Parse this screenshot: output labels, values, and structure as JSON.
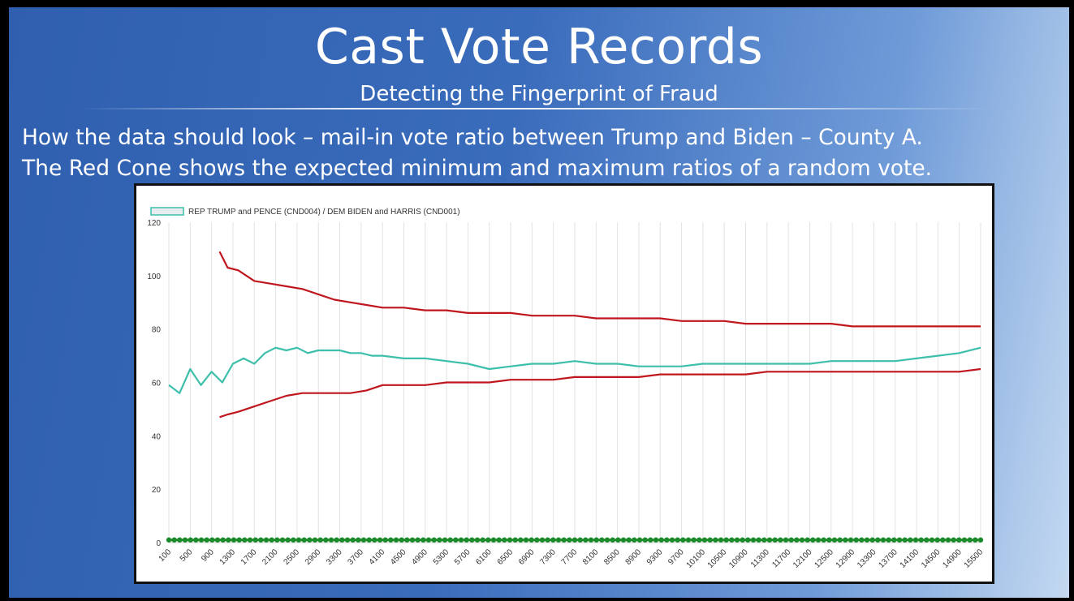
{
  "slide": {
    "title": "Cast Vote Records",
    "subtitle": "Detecting the Fingerprint of Fraud",
    "description_line_1": "How the data should look – mail-in vote ratio between Trump and Biden – County A.",
    "description_line_2": "The Red Cone shows the expected minimum and maximum ratios of a random vote."
  },
  "chart_data": {
    "type": "line",
    "legend": "REP TRUMP and PENCE (CND004) / DEM BIDEN and HARRIS (CND001)",
    "ylim": [
      0,
      120
    ],
    "yticks": [
      0,
      20,
      40,
      60,
      80,
      100,
      120
    ],
    "grid": "vertical",
    "xticks": [
      100,
      500,
      900,
      1300,
      1700,
      2100,
      2500,
      2900,
      3300,
      3700,
      4100,
      4500,
      4900,
      5300,
      5700,
      6100,
      6500,
      6900,
      7300,
      7700,
      8100,
      8500,
      8900,
      9300,
      9700,
      10100,
      10500,
      10900,
      11300,
      11700,
      12100,
      12500,
      12900,
      13300,
      13700,
      14100,
      14500,
      14900,
      15500
    ],
    "series": [
      {
        "name": "REP TRUMP and PENCE (CND004) / DEM BIDEN and HARRIS (CND001)",
        "color": "#3dbfab",
        "x": [
          100,
          300,
          500,
          700,
          900,
          1100,
          1300,
          1500,
          1700,
          1900,
          2100,
          2300,
          2500,
          2700,
          2900,
          3100,
          3300,
          3500,
          3700,
          3900,
          4100,
          4500,
          4900,
          5300,
          5700,
          6100,
          6500,
          6900,
          7300,
          7700,
          8100,
          8500,
          8900,
          9300,
          9700,
          10100,
          10500,
          10900,
          11300,
          11700,
          12100,
          12500,
          12900,
          13300,
          13700,
          14100,
          14500,
          14900,
          15500
        ],
        "y": [
          59,
          56,
          65,
          59,
          64,
          60,
          67,
          69,
          67,
          71,
          73,
          72,
          73,
          71,
          72,
          72,
          72,
          71,
          71,
          70,
          70,
          69,
          69,
          68,
          67,
          65,
          66,
          67,
          67,
          68,
          67,
          67,
          66,
          66,
          66,
          67,
          67,
          67,
          67,
          67,
          67,
          68,
          68,
          68,
          68,
          69,
          70,
          71,
          73
        ]
      },
      {
        "name": "",
        "color": "#c0161e",
        "x": [
          1050,
          1200,
          1400,
          1700,
          2000,
          2300,
          2600,
          2900,
          3200,
          3500,
          3800,
          4100,
          4500,
          4900,
          5300,
          5700,
          6100,
          6500,
          6900,
          7300,
          7700,
          8100,
          8500,
          8900,
          9300,
          9700,
          10100,
          10500,
          10900,
          11300,
          11700,
          12100,
          12500,
          12900,
          13300,
          13700,
          14100,
          14500,
          14900,
          15500
        ],
        "y": [
          109,
          103,
          102,
          98,
          97,
          96,
          95,
          93,
          91,
          90,
          89,
          88,
          88,
          87,
          87,
          86,
          86,
          86,
          85,
          85,
          85,
          84,
          84,
          84,
          84,
          83,
          83,
          83,
          82,
          82,
          82,
          82,
          82,
          81,
          81,
          81,
          81,
          81,
          81,
          81
        ]
      },
      {
        "name": "",
        "color": "#c0161e",
        "x": [
          1050,
          1200,
          1400,
          1700,
          2000,
          2300,
          2600,
          2900,
          3200,
          3500,
          3800,
          4100,
          4500,
          4900,
          5300,
          5700,
          6100,
          6500,
          6900,
          7300,
          7700,
          8100,
          8500,
          8900,
          9300,
          9700,
          10100,
          10500,
          10900,
          11300,
          11700,
          12100,
          12500,
          12900,
          13300,
          13700,
          14100,
          14500,
          14900,
          15500
        ],
        "y": [
          47,
          48,
          49,
          51,
          53,
          55,
          56,
          56,
          56,
          56,
          57,
          59,
          59,
          59,
          60,
          60,
          60,
          61,
          61,
          61,
          62,
          62,
          62,
          62,
          63,
          63,
          63,
          63,
          63,
          64,
          64,
          64,
          64,
          64,
          64,
          64,
          64,
          64,
          64,
          65
        ]
      },
      {
        "name": "",
        "color": "#1a8a2a",
        "marker": "dot",
        "x": [
          100,
          15500
        ],
        "y": [
          1,
          1
        ]
      }
    ]
  }
}
